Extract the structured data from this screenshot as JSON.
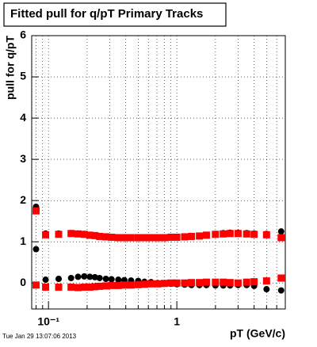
{
  "chart_data": {
    "type": "scatter",
    "title": "Fitted pull for q/pT  Primary Tracks",
    "x_label": "pT (GeV/c)",
    "y_label": "pull for q/pT",
    "date": "Tue Jan 29 13:07:06 2013",
    "log_x": true,
    "grid": true,
    "xlim": [
      0.074,
      7
    ],
    "ylim": [
      -0.63,
      6
    ],
    "xticks": [
      {
        "value": 0.1,
        "label": "10⁻¹"
      },
      1
    ],
    "xminorticks": [
      0.08,
      0.09,
      0.2,
      0.3,
      0.4,
      0.5,
      0.6,
      0.7,
      0.8,
      0.9,
      2,
      3,
      4,
      5,
      6,
      7
    ],
    "yticks": [
      0,
      1,
      2,
      3,
      4,
      5,
      6
    ],
    "x": [
      0.08,
      0.095,
      0.12,
      0.15,
      0.17,
      0.19,
      0.21,
      0.23,
      0.25,
      0.28,
      0.31,
      0.35,
      0.39,
      0.44,
      0.5,
      0.56,
      0.63,
      0.71,
      0.8,
      0.9,
      1.0,
      1.15,
      1.3,
      1.5,
      1.7,
      2.0,
      2.3,
      2.6,
      3.0,
      3.5,
      4.0,
      5.0,
      6.5
    ],
    "series": [
      {
        "color": "#000000",
        "marker": "circle",
        "values": [
          1.85,
          1.2,
          1.2,
          1.21,
          1.2,
          1.19,
          1.17,
          1.16,
          1.14,
          1.13,
          1.12,
          1.11,
          1.11,
          1.11,
          1.11,
          1.11,
          1.11,
          1.11,
          1.11,
          1.12,
          1.12,
          1.13,
          1.14,
          1.15,
          1.17,
          1.19,
          1.21,
          1.22,
          1.22,
          1.21,
          1.2,
          1.19,
          1.25
        ]
      },
      {
        "color": "#ff0000",
        "marker": "square",
        "values": [
          1.75,
          1.17,
          1.18,
          1.2,
          1.19,
          1.18,
          1.16,
          1.15,
          1.13,
          1.12,
          1.11,
          1.1,
          1.1,
          1.1,
          1.1,
          1.1,
          1.1,
          1.1,
          1.1,
          1.11,
          1.11,
          1.12,
          1.13,
          1.14,
          1.16,
          1.18,
          1.19,
          1.2,
          1.2,
          1.19,
          1.18,
          1.17,
          1.1
        ]
      },
      {
        "color": "#000000",
        "marker": "circle",
        "values": [
          0.82,
          0.08,
          0.1,
          0.12,
          0.15,
          0.16,
          0.15,
          0.14,
          0.12,
          0.1,
          0.09,
          0.08,
          0.07,
          0.06,
          0.05,
          0.03,
          0.02,
          0.0,
          -0.01,
          -0.02,
          -0.03,
          -0.04,
          -0.05,
          -0.05,
          -0.05,
          -0.06,
          -0.06,
          -0.06,
          -0.05,
          -0.05,
          -0.07,
          -0.15,
          -0.18
        ]
      },
      {
        "color": "#ff0000",
        "marker": "square",
        "values": [
          -0.05,
          -0.1,
          -0.1,
          -0.1,
          -0.11,
          -0.1,
          -0.1,
          -0.09,
          -0.08,
          -0.07,
          -0.06,
          -0.06,
          -0.05,
          -0.05,
          -0.04,
          -0.03,
          -0.02,
          -0.02,
          -0.01,
          0,
          0,
          0,
          0.01,
          0.01,
          0.02,
          0.02,
          0.02,
          0.01,
          0,
          0.02,
          0.03,
          0.05,
          0.12
        ]
      }
    ]
  }
}
